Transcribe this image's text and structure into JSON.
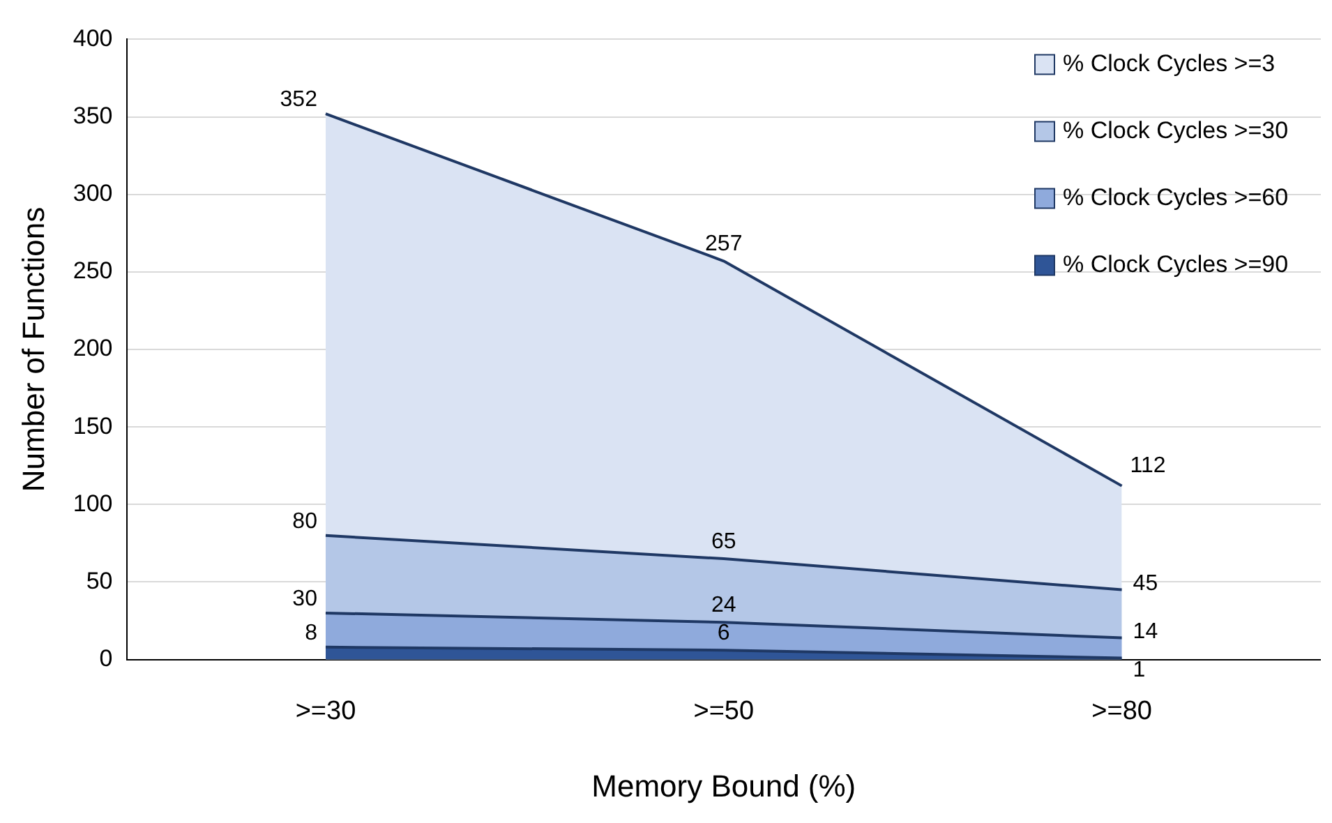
{
  "chart_data": {
    "type": "area",
    "xlabel": "Memory Bound (%)",
    "ylabel": "Number of Functions",
    "categories": [
      ">=30",
      ">=50",
      ">=80"
    ],
    "series": [
      {
        "name": "% Clock Cycles >=3",
        "color": "#dae3f3",
        "values": [
          352,
          257,
          112
        ]
      },
      {
        "name": "% Clock Cycles >=30",
        "color": "#b4c7e7",
        "values": [
          80,
          65,
          45
        ]
      },
      {
        "name": "% Clock Cycles >=60",
        "color": "#8faadc",
        "values": [
          30,
          24,
          14
        ]
      },
      {
        "name": "% Clock Cycles >=90",
        "color": "#2f5597",
        "values": [
          8,
          6,
          1
        ]
      }
    ],
    "ylim": [
      0,
      400
    ],
    "yticks": [
      0,
      50,
      100,
      150,
      200,
      250,
      300,
      350,
      400
    ],
    "grid": "y",
    "legend": "top right",
    "data_labels": true
  }
}
